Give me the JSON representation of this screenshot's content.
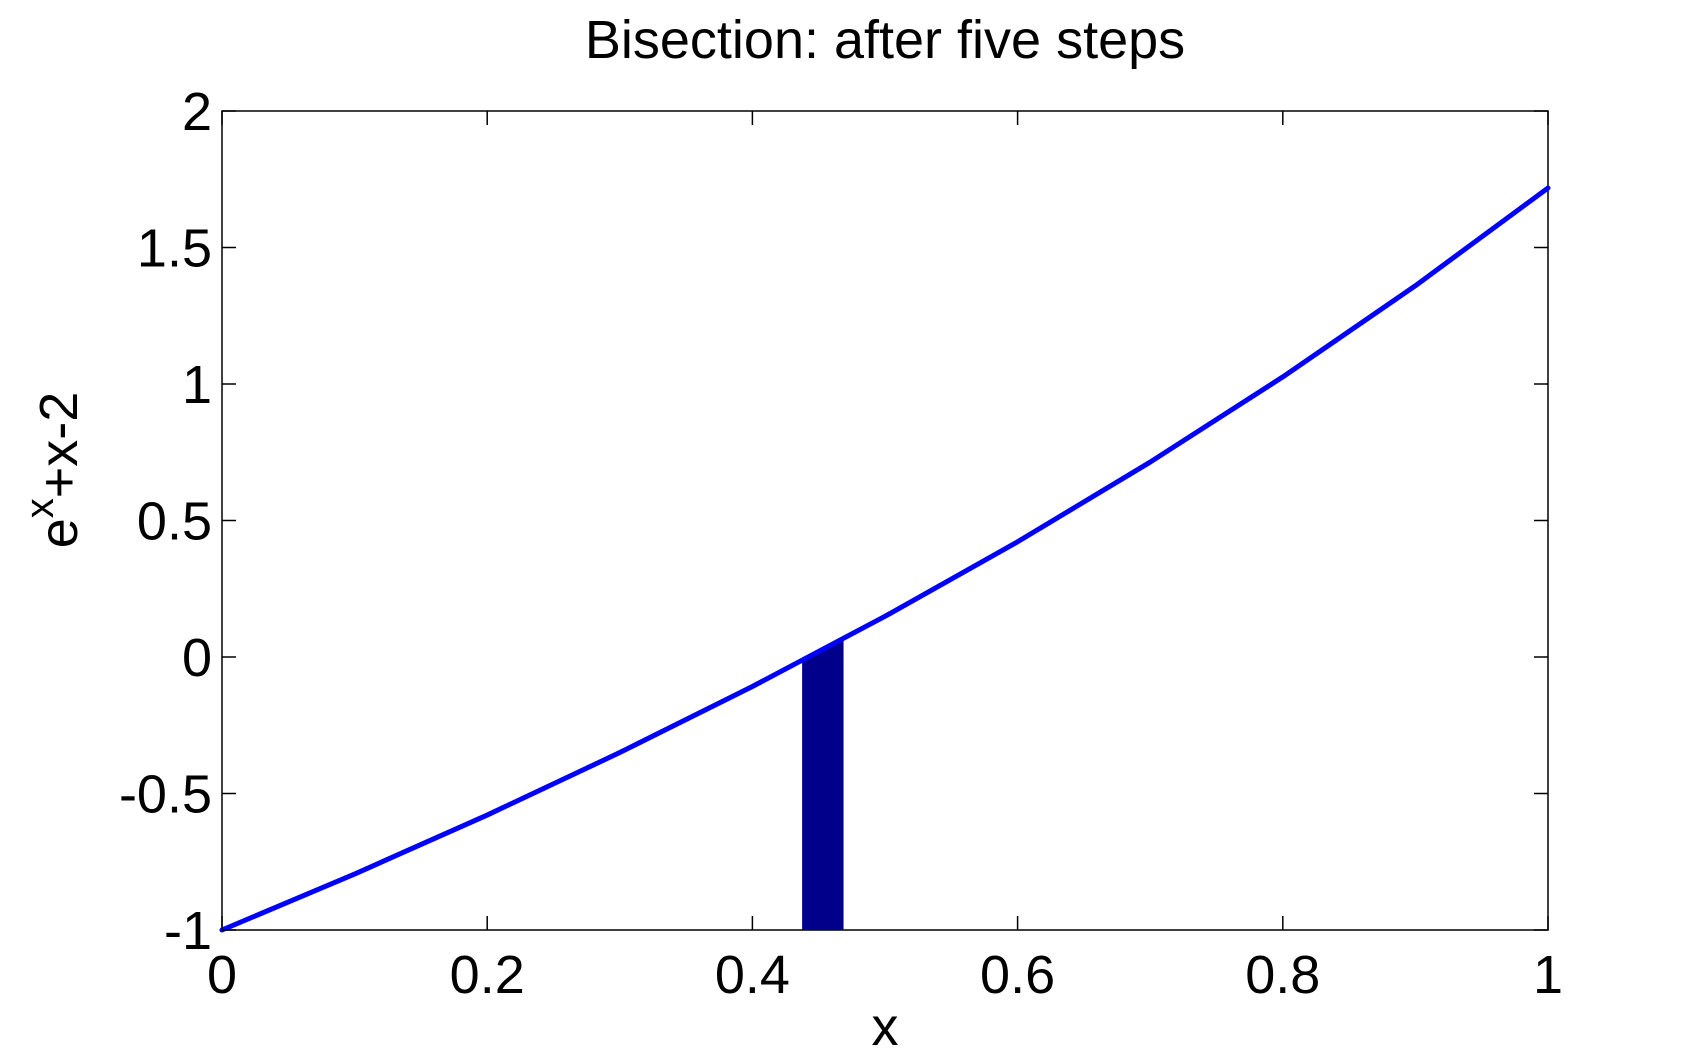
{
  "chart_data": {
    "type": "line",
    "title": "Bisection: after five steps",
    "xlabel": "x",
    "ylabel": {
      "base": "e",
      "superscript": "x",
      "rest": "+x-2"
    },
    "xlim": [
      0,
      1
    ],
    "ylim": [
      -1,
      2
    ],
    "xticks": [
      0,
      0.2,
      0.4,
      0.6,
      0.8,
      1
    ],
    "xtick_labels": [
      "0",
      "0.2",
      "0.4",
      "0.6",
      "0.8",
      "1"
    ],
    "yticks": [
      -1,
      -0.5,
      0,
      0.5,
      1,
      1.5,
      2
    ],
    "ytick_labels": [
      "-1",
      "-0.5",
      "0",
      "0.5",
      "1",
      "1.5",
      "2"
    ],
    "grid": false,
    "series": [
      {
        "color": "#0000ff",
        "x": [
          0,
          0.1,
          0.2,
          0.3,
          0.4,
          0.5,
          0.6,
          0.7,
          0.8,
          0.9,
          1.0
        ],
        "y": [
          -1.0,
          -0.795,
          -0.579,
          -0.35,
          -0.108,
          0.149,
          0.422,
          0.714,
          1.026,
          1.36,
          1.718
        ]
      }
    ],
    "bracket_interval": {
      "x": [
        0.4375,
        0.46875
      ],
      "y_bottom": -1,
      "color": "#00008b"
    }
  }
}
